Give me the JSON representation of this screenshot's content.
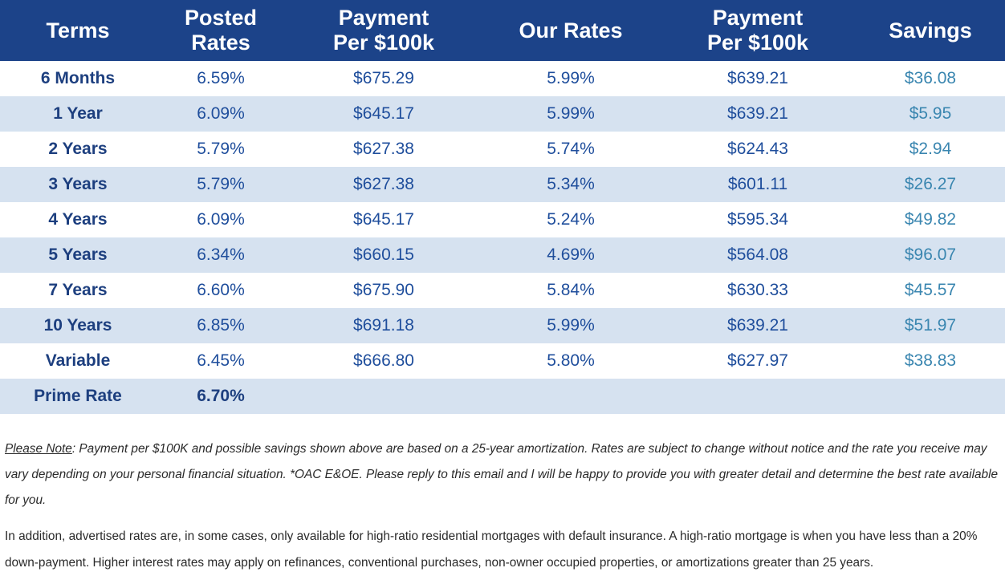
{
  "table": {
    "headers": [
      [
        "Terms"
      ],
      [
        "Posted",
        "Rates"
      ],
      [
        "Payment",
        "Per $100k"
      ],
      [
        "Our Rates"
      ],
      [
        "Payment",
        "Per $100k"
      ],
      [
        "Savings"
      ]
    ],
    "rows": [
      {
        "term": "6 Months",
        "posted": "6.59%",
        "posted_payment": "$675.29",
        "our_rate": "5.99%",
        "our_payment": "$639.21",
        "savings": "$36.08"
      },
      {
        "term": "1 Year",
        "posted": "6.09%",
        "posted_payment": "$645.17",
        "our_rate": "5.99%",
        "our_payment": "$639.21",
        "savings": "$5.95"
      },
      {
        "term": "2 Years",
        "posted": "5.79%",
        "posted_payment": "$627.38",
        "our_rate": "5.74%",
        "our_payment": "$624.43",
        "savings": "$2.94"
      },
      {
        "term": "3 Years",
        "posted": "5.79%",
        "posted_payment": "$627.38",
        "our_rate": "5.34%",
        "our_payment": "$601.11",
        "savings": "$26.27"
      },
      {
        "term": "4 Years",
        "posted": "6.09%",
        "posted_payment": "$645.17",
        "our_rate": "5.24%",
        "our_payment": "$595.34",
        "savings": "$49.82"
      },
      {
        "term": "5 Years",
        "posted": "6.34%",
        "posted_payment": "$660.15",
        "our_rate": "4.69%",
        "our_payment": "$564.08",
        "savings": "$96.07"
      },
      {
        "term": "7 Years",
        "posted": "6.60%",
        "posted_payment": "$675.90",
        "our_rate": "5.84%",
        "our_payment": "$630.33",
        "savings": "$45.57"
      },
      {
        "term": "10 Years",
        "posted": "6.85%",
        "posted_payment": "$691.18",
        "our_rate": "5.99%",
        "our_payment": "$639.21",
        "savings": "$51.97"
      },
      {
        "term": "Variable",
        "posted": "6.45%",
        "posted_payment": "$666.80",
        "our_rate": "5.80%",
        "our_payment": "$627.97",
        "savings": "$38.83"
      }
    ],
    "prime": {
      "label": "Prime Rate",
      "value": "6.70%"
    }
  },
  "notes": {
    "note1_lead": "Please Note",
    "note1_body": ": Payment per $100K and possible savings shown above are based on a 25-year amortization. Rates are subject to change without notice and the rate you receive may vary depending on your personal financial situation. *OAC E&OE. Please reply to this email and I will be happy to provide you with greater detail and determine the best rate available for you.",
    "note2": "In addition, advertised rates are, in some cases, only available for high-ratio residential mortgages with default insurance. A high-ratio mortgage is when you have less than a 20% down-payment. Higher interest rates may apply on refinances, conventional purchases, non-owner occupied properties, or amortizations greater than 25 years."
  },
  "colors": {
    "header_bg": "#1c4389",
    "alt_row_bg": "#d6e2f0",
    "term_text": "#1d3f7f",
    "value_text": "#1f4e9c",
    "savings_text": "#3a86b0"
  }
}
